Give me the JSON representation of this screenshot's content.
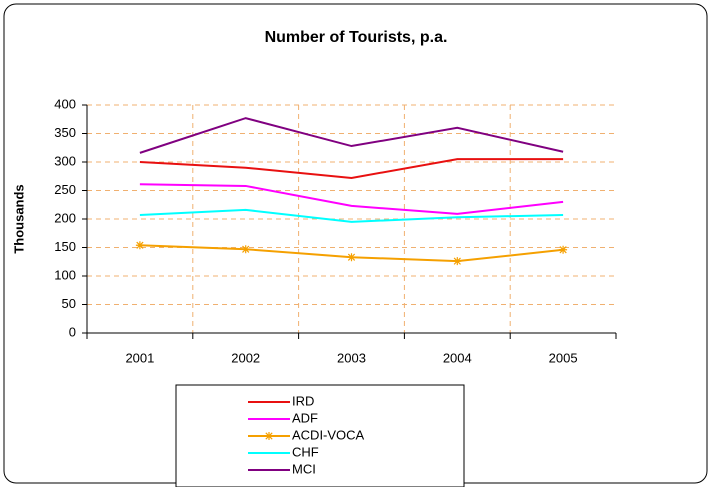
{
  "chart_data": {
    "type": "line",
    "title": "Number of Tourists, p.a.",
    "y_label": "Thousands",
    "categories": [
      "2001",
      "2002",
      "2003",
      "2004",
      "2005"
    ],
    "series": [
      {
        "name": "IRD",
        "color": "#e81010",
        "values": [
          300,
          290,
          272,
          305,
          305
        ]
      },
      {
        "name": "ADF",
        "color": "#ff00ff",
        "values": [
          261,
          258,
          223,
          209,
          230
        ]
      },
      {
        "name": "ACDI-VOCA",
        "color": "#f5a000",
        "marker": "asterisk",
        "values": [
          154,
          147,
          133,
          126,
          146
        ]
      },
      {
        "name": "CHF",
        "color": "#00ffff",
        "values": [
          207,
          216,
          195,
          203,
          207
        ]
      },
      {
        "name": "MCI",
        "color": "#800080",
        "values": [
          316,
          377,
          328,
          360,
          318
        ]
      }
    ],
    "ylim": [
      0,
      400
    ],
    "yticks": [
      0,
      50,
      100,
      150,
      200,
      250,
      300,
      350,
      400
    ],
    "grid": true,
    "legend": "bottom"
  }
}
